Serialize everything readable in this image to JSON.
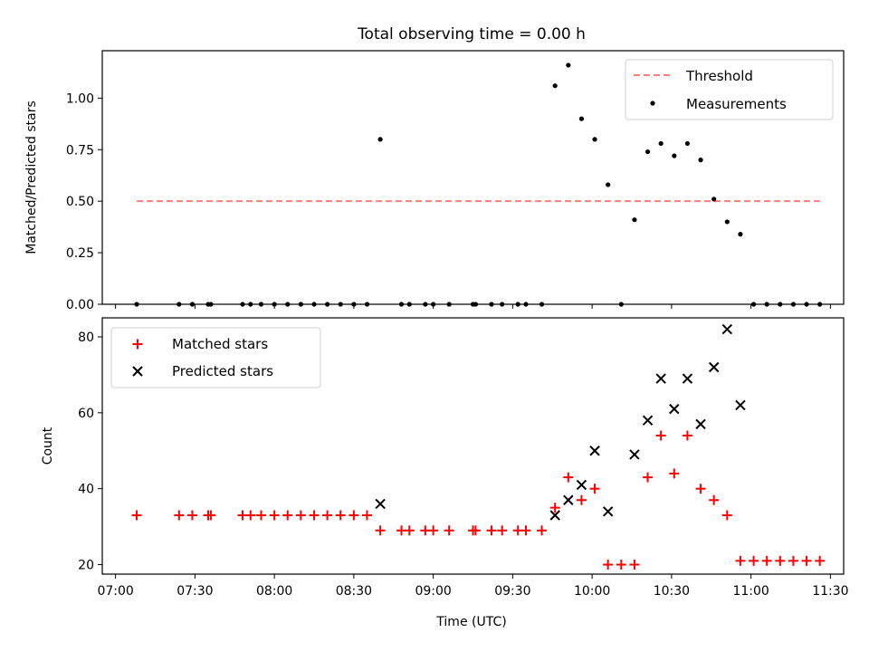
{
  "figure": {
    "title": "Total observing time = 0.00 h",
    "xlabel": "Time (UTC)"
  },
  "chart_data": [
    {
      "type": "scatter",
      "ylabel": "Matched/Predicted stars",
      "xlim": [
        "06:55",
        "11:35"
      ],
      "ylim": [
        0,
        1.23
      ],
      "yticks": [
        "0.00",
        "0.25",
        "0.50",
        "0.75",
        "1.00"
      ],
      "legend": {
        "placement": "upper right",
        "entries": [
          "Threshold",
          "Measurements"
        ]
      },
      "threshold": {
        "name": "Threshold",
        "value": 0.5,
        "x_start": "07:08",
        "x_end": "11:26",
        "color": "#ff7f7f",
        "style": "dashed"
      },
      "series": [
        {
          "name": "Measurements",
          "color": "#000000",
          "marker": "dot",
          "points": [
            [
              "07:08",
              0
            ],
            [
              "07:24",
              0
            ],
            [
              "07:29",
              0
            ],
            [
              "07:35",
              0
            ],
            [
              "07:36",
              0
            ],
            [
              "07:48",
              0
            ],
            [
              "07:51",
              0
            ],
            [
              "07:55",
              0
            ],
            [
              "08:00",
              0
            ],
            [
              "08:05",
              0
            ],
            [
              "08:10",
              0
            ],
            [
              "08:15",
              0
            ],
            [
              "08:20",
              0
            ],
            [
              "08:25",
              0
            ],
            [
              "08:30",
              0
            ],
            [
              "08:35",
              0
            ],
            [
              "08:40",
              0.8
            ],
            [
              "08:48",
              0
            ],
            [
              "08:51",
              0
            ],
            [
              "08:57",
              0
            ],
            [
              "09:00",
              0
            ],
            [
              "09:06",
              0
            ],
            [
              "09:15",
              0
            ],
            [
              "09:16",
              0
            ],
            [
              "09:22",
              0
            ],
            [
              "09:26",
              0
            ],
            [
              "09:32",
              0
            ],
            [
              "09:35",
              0
            ],
            [
              "09:41",
              0
            ],
            [
              "09:46",
              1.06
            ],
            [
              "09:51",
              1.16
            ],
            [
              "09:56",
              0.9
            ],
            [
              "10:01",
              0.8
            ],
            [
              "10:06",
              0.58
            ],
            [
              "10:11",
              0
            ],
            [
              "10:16",
              0.41
            ],
            [
              "10:21",
              0.74
            ],
            [
              "10:26",
              0.78
            ],
            [
              "10:31",
              0.72
            ],
            [
              "10:36",
              0.78
            ],
            [
              "10:41",
              0.7
            ],
            [
              "10:46",
              0.51
            ],
            [
              "10:51",
              0.4
            ],
            [
              "10:56",
              0.34
            ],
            [
              "11:01",
              0
            ],
            [
              "11:06",
              0
            ],
            [
              "11:11",
              0
            ],
            [
              "11:16",
              0
            ],
            [
              "11:21",
              0
            ],
            [
              "11:26",
              0
            ]
          ]
        }
      ]
    },
    {
      "type": "scatter",
      "ylabel": "Count",
      "xlim": [
        "06:55",
        "11:35"
      ],
      "ylim": [
        17.5,
        85
      ],
      "yticks": [
        "20",
        "40",
        "60",
        "80"
      ],
      "xticks": [
        "07:00",
        "07:30",
        "08:00",
        "08:30",
        "09:00",
        "09:30",
        "10:00",
        "10:30",
        "11:00",
        "11:30"
      ],
      "legend": {
        "placement": "upper left",
        "entries": [
          "Matched stars",
          "Predicted stars"
        ]
      },
      "series": [
        {
          "name": "Matched stars",
          "color": "#ff0000",
          "marker": "plus",
          "points": [
            [
              "07:08",
              33
            ],
            [
              "07:24",
              33
            ],
            [
              "07:29",
              33
            ],
            [
              "07:35",
              33
            ],
            [
              "07:36",
              33
            ],
            [
              "07:48",
              33
            ],
            [
              "07:51",
              33
            ],
            [
              "07:55",
              33
            ],
            [
              "08:00",
              33
            ],
            [
              "08:05",
              33
            ],
            [
              "08:10",
              33
            ],
            [
              "08:15",
              33
            ],
            [
              "08:20",
              33
            ],
            [
              "08:25",
              33
            ],
            [
              "08:30",
              33
            ],
            [
              "08:35",
              33
            ],
            [
              "08:40",
              29
            ],
            [
              "08:48",
              29
            ],
            [
              "08:51",
              29
            ],
            [
              "08:57",
              29
            ],
            [
              "09:00",
              29
            ],
            [
              "09:06",
              29
            ],
            [
              "09:15",
              29
            ],
            [
              "09:16",
              29
            ],
            [
              "09:22",
              29
            ],
            [
              "09:26",
              29
            ],
            [
              "09:32",
              29
            ],
            [
              "09:35",
              29
            ],
            [
              "09:41",
              29
            ],
            [
              "09:46",
              35
            ],
            [
              "09:51",
              43
            ],
            [
              "09:56",
              37
            ],
            [
              "10:01",
              40
            ],
            [
              "10:06",
              20
            ],
            [
              "10:11",
              20
            ],
            [
              "10:16",
              20
            ],
            [
              "10:21",
              43
            ],
            [
              "10:26",
              54
            ],
            [
              "10:31",
              44
            ],
            [
              "10:36",
              54
            ],
            [
              "10:41",
              40
            ],
            [
              "10:46",
              37
            ],
            [
              "10:51",
              33
            ],
            [
              "10:56",
              21
            ],
            [
              "11:01",
              21
            ],
            [
              "11:06",
              21
            ],
            [
              "11:11",
              21
            ],
            [
              "11:16",
              21
            ],
            [
              "11:21",
              21
            ],
            [
              "11:26",
              21
            ]
          ]
        },
        {
          "name": "Predicted stars",
          "color": "#000000",
          "marker": "x",
          "points": [
            [
              "08:40",
              36
            ],
            [
              "09:46",
              33
            ],
            [
              "09:51",
              37
            ],
            [
              "09:56",
              41
            ],
            [
              "10:01",
              50
            ],
            [
              "10:06",
              34
            ],
            [
              "10:16",
              49
            ],
            [
              "10:21",
              58
            ],
            [
              "10:26",
              69
            ],
            [
              "10:31",
              61
            ],
            [
              "10:36",
              69
            ],
            [
              "10:41",
              57
            ],
            [
              "10:46",
              72
            ],
            [
              "10:51",
              82
            ],
            [
              "10:56",
              62
            ]
          ]
        }
      ]
    }
  ]
}
